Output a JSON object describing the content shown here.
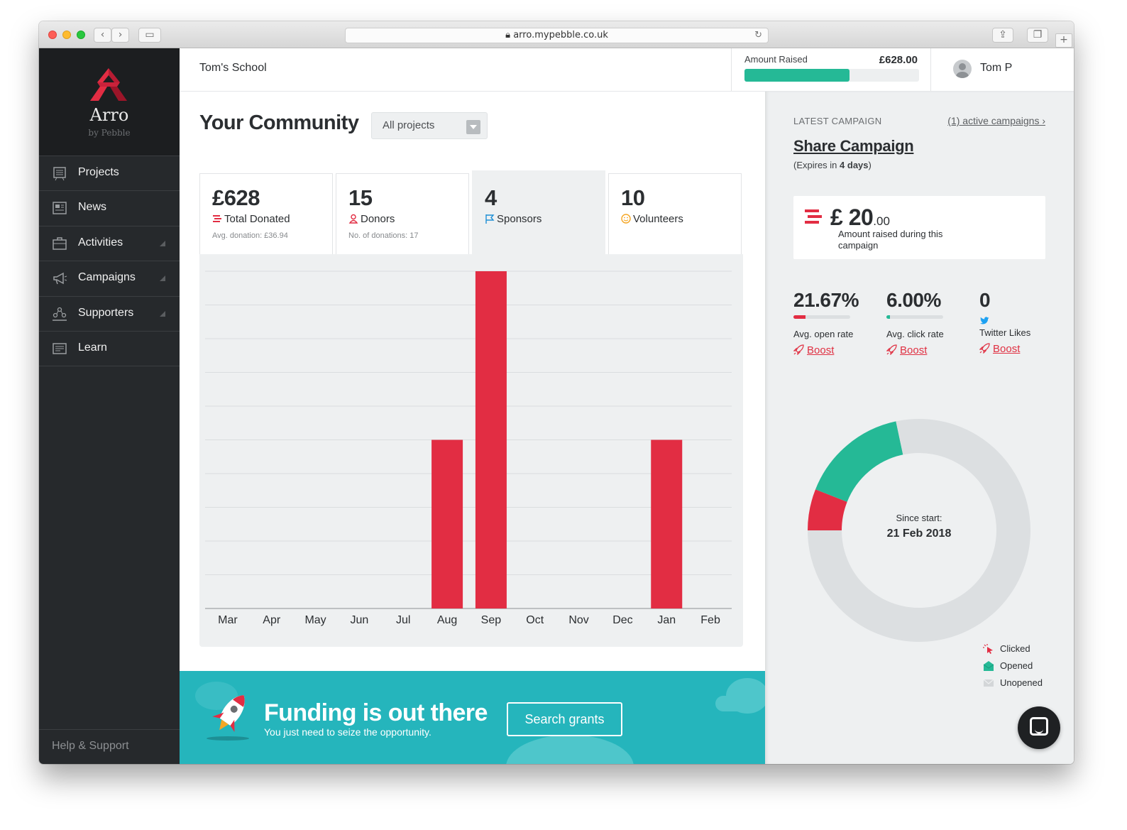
{
  "browser": {
    "url": "arro.mypebble.co.uk"
  },
  "brand": {
    "name": "Arro",
    "sub": "by Pebble"
  },
  "sidebar": {
    "items": [
      {
        "label": "Projects",
        "icon": "projects-icon"
      },
      {
        "label": "News",
        "icon": "news-icon"
      },
      {
        "label": "Activities",
        "icon": "activities-icon"
      },
      {
        "label": "Campaigns",
        "icon": "megaphone-icon"
      },
      {
        "label": "Supporters",
        "icon": "supporters-icon"
      },
      {
        "label": "Learn",
        "icon": "learn-icon"
      }
    ],
    "help": "Help & Support"
  },
  "header": {
    "school": "Tom's School",
    "amount_label": "Amount Raised",
    "amount_value": "£628.00",
    "amount_progress": 0.6,
    "user_name": "Tom P"
  },
  "main": {
    "title": "Your Community",
    "select_value": "All projects",
    "stats": [
      {
        "num": "£628",
        "label": "Total Donated",
        "sub": "Avg. donation: £36.94",
        "icon": "donation-stack-icon"
      },
      {
        "num": "15",
        "label": "Donors",
        "sub": "No. of donations: 17",
        "icon": "donor-icon"
      },
      {
        "num": "4",
        "label": "Sponsors",
        "sub": "",
        "icon": "flag-icon"
      },
      {
        "num": "10",
        "label": "Volunteers",
        "sub": "",
        "icon": "smiley-icon"
      }
    ]
  },
  "chart_data": {
    "type": "bar",
    "categories": [
      "Mar",
      "Apr",
      "May",
      "Jun",
      "Jul",
      "Aug",
      "Sep",
      "Oct",
      "Nov",
      "Dec",
      "Jan",
      "Feb"
    ],
    "values": [
      0,
      0,
      0,
      0,
      0,
      5,
      10,
      0,
      0,
      0,
      5,
      0
    ],
    "ylim": [
      0,
      10
    ],
    "grid": true,
    "bar_color": "#e22d43"
  },
  "banner": {
    "title": "Funding is out there",
    "subtitle": "You just need to seize the opportunity.",
    "button": "Search grants"
  },
  "campaign": {
    "latest_label": "LATEST CAMPAIGN",
    "active_link": "(1) active campaigns ›",
    "title": "Share Campaign",
    "expires_prefix": "(Expires in ",
    "expires_value": "4 days",
    "expires_suffix": ")",
    "amount_main": "£ 20",
    "amount_decimal": ".00",
    "amount_desc": "Amount raised during this campaign",
    "metrics": [
      {
        "value": "21.67%",
        "label": "Avg. open rate",
        "boost": "Boost",
        "progress": 0.2167,
        "color": "#e22d43"
      },
      {
        "value": "6.00%",
        "label": "Avg. click rate",
        "boost": "Boost",
        "progress": 0.06,
        "color": "#25b996"
      },
      {
        "value": "0",
        "label": "Twitter Likes",
        "boost": "Boost"
      }
    ],
    "donut": {
      "segments": [
        {
          "name": "Clicked",
          "value": 6,
          "color": "#e22d43"
        },
        {
          "name": "Opened",
          "value": 15.67,
          "color": "#25b996"
        },
        {
          "name": "Unopened",
          "value": 78.33,
          "color": "#dcdfe1"
        }
      ]
    },
    "since_label": "Since start:",
    "since_date": "21 Feb 2018",
    "legend": [
      "Clicked",
      "Opened",
      "Unopened"
    ]
  }
}
